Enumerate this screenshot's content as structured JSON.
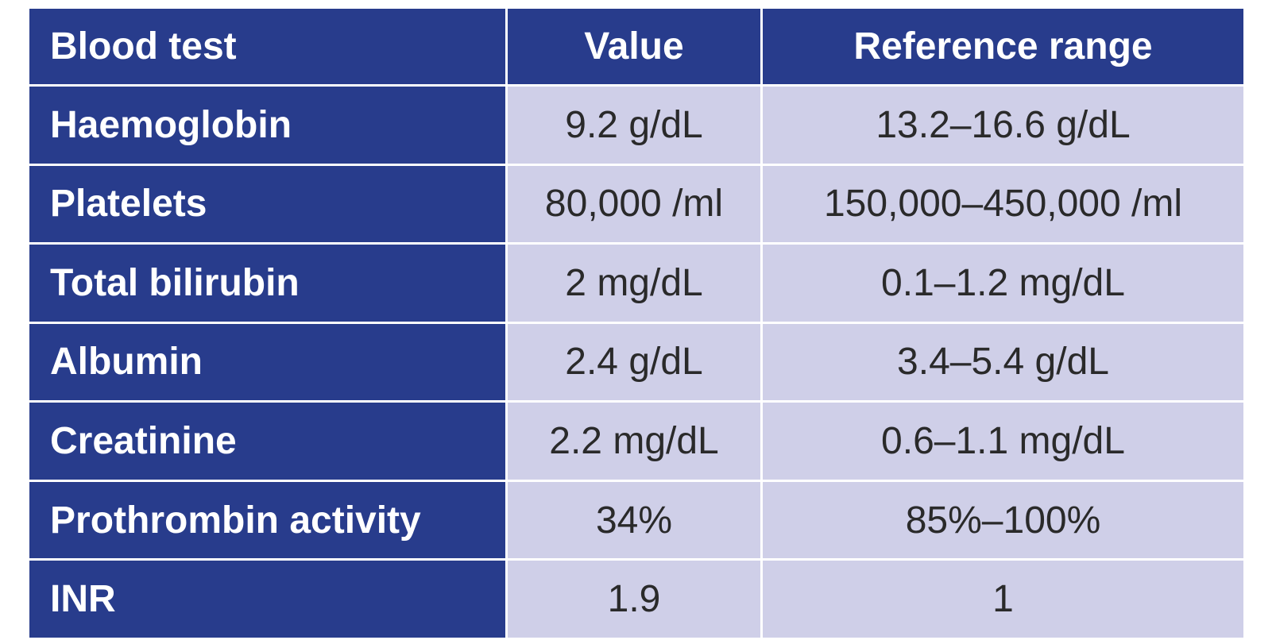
{
  "table": {
    "headers": [
      "Blood test",
      "Value",
      "Reference range"
    ],
    "rows": [
      {
        "test": "Haemoglobin",
        "value": "9.2 g/dL",
        "range": "13.2–16.6 g/dL"
      },
      {
        "test": "Platelets",
        "value": "80,000 /ml",
        "range": "150,000–450,000 /ml"
      },
      {
        "test": "Total bilirubin",
        "value": "2 mg/dL",
        "range": "0.1–1.2 mg/dL"
      },
      {
        "test": "Albumin",
        "value": "2.4 g/dL",
        "range": "3.4–5.4 g/dL"
      },
      {
        "test": "Creatinine",
        "value": "2.2 mg/dL",
        "range": "0.6–1.1 mg/dL"
      },
      {
        "test": "Prothrombin activity",
        "value": "34%",
        "range": "85%–100%"
      },
      {
        "test": "INR",
        "value": "1.9",
        "range": "1"
      }
    ]
  },
  "colors": {
    "header_background": "#283c8c",
    "header_text": "#ffffff",
    "cell_background": "#cfcfe8",
    "cell_text": "#2a2a2a"
  }
}
